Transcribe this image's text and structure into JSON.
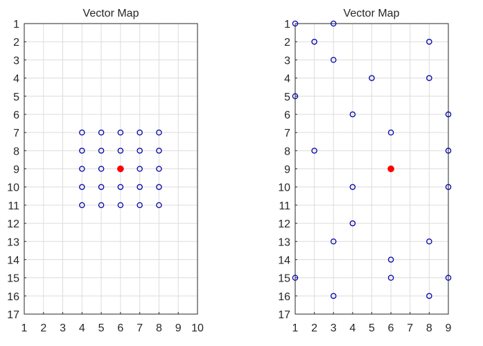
{
  "chart_data": [
    {
      "type": "scatter",
      "title": "Vector Map",
      "xlabel": "",
      "ylabel": "",
      "xlim": [
        1,
        10
      ],
      "ylim": [
        1,
        17
      ],
      "y_reversed": true,
      "grid": true,
      "xticks": [
        "1",
        "2",
        "3",
        "4",
        "5",
        "6",
        "7",
        "8",
        "9",
        "10"
      ],
      "yticks": [
        "1",
        "2",
        "3",
        "4",
        "5",
        "6",
        "7",
        "8",
        "9",
        "10",
        "11",
        "12",
        "13",
        "14",
        "15",
        "16",
        "17"
      ],
      "series": [
        {
          "marker": "open-circle",
          "color": "#0000a8",
          "points": [
            [
              4,
              7
            ],
            [
              5,
              7
            ],
            [
              6,
              7
            ],
            [
              7,
              7
            ],
            [
              8,
              7
            ],
            [
              4,
              8
            ],
            [
              5,
              8
            ],
            [
              6,
              8
            ],
            [
              7,
              8
            ],
            [
              8,
              8
            ],
            [
              4,
              9
            ],
            [
              5,
              9
            ],
            [
              7,
              9
            ],
            [
              8,
              9
            ],
            [
              4,
              10
            ],
            [
              5,
              10
            ],
            [
              6,
              10
            ],
            [
              7,
              10
            ],
            [
              8,
              10
            ],
            [
              4,
              11
            ],
            [
              5,
              11
            ],
            [
              6,
              11
            ],
            [
              7,
              11
            ],
            [
              8,
              11
            ]
          ]
        },
        {
          "marker": "filled-circle",
          "color": "#ff0000",
          "points": [
            [
              6,
              9
            ]
          ]
        }
      ]
    },
    {
      "type": "scatter",
      "title": "Vector Map",
      "xlabel": "",
      "ylabel": "",
      "xlim": [
        1,
        9
      ],
      "ylim": [
        1,
        17
      ],
      "y_reversed": true,
      "grid": true,
      "xticks": [
        "1",
        "2",
        "3",
        "4",
        "5",
        "6",
        "7",
        "8",
        "9"
      ],
      "yticks": [
        "1",
        "2",
        "3",
        "4",
        "5",
        "6",
        "7",
        "8",
        "9",
        "10",
        "11",
        "12",
        "13",
        "14",
        "15",
        "16",
        "17"
      ],
      "series": [
        {
          "marker": "open-circle",
          "color": "#0000a8",
          "points": [
            [
              1,
              1
            ],
            [
              3,
              1
            ],
            [
              2,
              2
            ],
            [
              8,
              2
            ],
            [
              3,
              3
            ],
            [
              5,
              4
            ],
            [
              8,
              4
            ],
            [
              1,
              5
            ],
            [
              4,
              6
            ],
            [
              9,
              6
            ],
            [
              6,
              7
            ],
            [
              2,
              8
            ],
            [
              9,
              8
            ],
            [
              4,
              10
            ],
            [
              9,
              10
            ],
            [
              4,
              12
            ],
            [
              3,
              13
            ],
            [
              8,
              13
            ],
            [
              6,
              14
            ],
            [
              1,
              15
            ],
            [
              6,
              15
            ],
            [
              9,
              15
            ],
            [
              3,
              16
            ],
            [
              8,
              16
            ]
          ]
        },
        {
          "marker": "filled-circle",
          "color": "#ff0000",
          "points": [
            [
              6,
              9
            ]
          ]
        }
      ]
    }
  ]
}
